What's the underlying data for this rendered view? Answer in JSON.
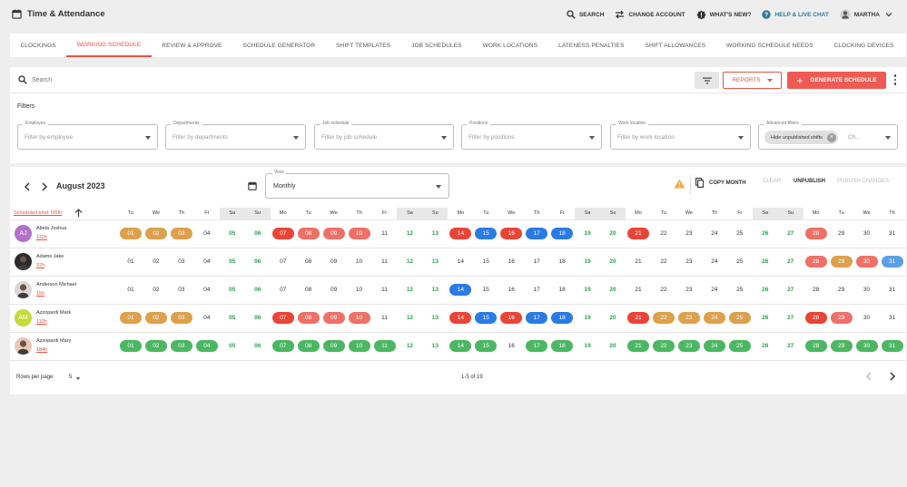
{
  "app": {
    "title": "Time & Attendance"
  },
  "top_actions": {
    "search": "SEARCH",
    "change_account": "CHANGE ACCOUNT",
    "whats_new": "WHAT'S NEW?",
    "help": "HELP & LIVE CHAT",
    "user": "MARTHA"
  },
  "tabs": [
    {
      "label": "CLOCKINGS",
      "active": false
    },
    {
      "label": "WORKING SCHEDULE",
      "active": true
    },
    {
      "label": "REVIEW & APPROVE",
      "active": false
    },
    {
      "label": "SCHEDULE GENERATOR",
      "active": false
    },
    {
      "label": "SHIFT TEMPLATES",
      "active": false
    },
    {
      "label": "JOB SCHEDULES",
      "active": false
    },
    {
      "label": "WORK LOCATIONS",
      "active": false
    },
    {
      "label": "LATENESS PENALTIES",
      "active": false
    },
    {
      "label": "SHIFT ALLOWANCES",
      "active": false
    },
    {
      "label": "WORKING SCHEDULE NEEDS",
      "active": false
    },
    {
      "label": "CLOCKING DEVICES",
      "active": false
    }
  ],
  "toolbar": {
    "search_placeholder": "Search",
    "reports_label": "REPORTS",
    "generate_label": "GENERATE SCHEDULE"
  },
  "filters": {
    "title": "Filters",
    "items": [
      {
        "label": "Employee",
        "placeholder": "Filter by employee"
      },
      {
        "label": "Departments",
        "placeholder": "Filter by departments"
      },
      {
        "label": "Job schedule",
        "placeholder": "Filter by job schedule"
      },
      {
        "label": "Positions",
        "placeholder": "Filter by positions"
      },
      {
        "label": "Work location",
        "placeholder": "Filter by work location"
      }
    ],
    "advanced": {
      "label": "Advanced filters",
      "chip": "Hide unpublished shifts",
      "placeholder": "Ch..."
    }
  },
  "schedule": {
    "month": "August 2023",
    "view_label": "View",
    "view_value": "Monthly",
    "copy_month": "COPY MONTH",
    "clear": "CLEAR",
    "unpublish": "UNPUBLISH",
    "publish": "PUBLISH CHANGES",
    "scheduled_total": "Scheduled total: 500h",
    "days": [
      "Tu",
      "We",
      "Th",
      "Fr",
      "Sa",
      "Su",
      "Mo",
      "Tu",
      "We",
      "Th",
      "Fr",
      "Sa",
      "Su",
      "Mo",
      "Tu",
      "We",
      "Th",
      "Fr",
      "Sa",
      "Su",
      "Mo",
      "Tu",
      "We",
      "Th",
      "Fr",
      "Sa",
      "Su",
      "Mo",
      "Tu",
      "We",
      "Th"
    ],
    "weekend_header_shading": [
      false,
      false,
      false,
      false,
      true,
      true,
      false,
      false,
      false,
      false,
      false,
      true,
      true,
      false,
      false,
      false,
      false,
      false,
      true,
      true,
      false,
      false,
      false,
      false,
      false,
      true,
      true,
      false,
      false,
      false,
      false
    ],
    "colors": {
      "o": "#dda04b",
      "r": "#ea4437",
      "s": "#ef7066",
      "b": "#2a7be4",
      "l": "#5aa0e6",
      "g": "#4cb763"
    },
    "employees": [
      {
        "name": "Abela Joshua",
        "hours": "112h",
        "avatar": "AJ",
        "avatar_bg": "#b36fc9",
        "days": [
          "o",
          "o",
          "o",
          "",
          "",
          "",
          "r",
          "s",
          "s",
          "s",
          "",
          "",
          "",
          "r",
          "b",
          "r",
          "b",
          "b",
          "",
          "",
          "r",
          "",
          "",
          "",
          "",
          "",
          "",
          "s",
          "",
          "",
          ""
        ]
      },
      {
        "name": "Adams Jake",
        "hours": "37h",
        "avatar": "",
        "avatar_bg": "#2b2b2b",
        "days": [
          "",
          "",
          "",
          "",
          "",
          "",
          "",
          "",
          "",
          "",
          "",
          "",
          "",
          "",
          "",
          "",
          "",
          "",
          "",
          "",
          "",
          "",
          "",
          "",
          "",
          "",
          "",
          "s",
          "o",
          "s",
          "l"
        ]
      },
      {
        "name": "Anderson Michael",
        "hours": "15h",
        "avatar": "",
        "avatar_bg": "#d9d9d9",
        "days": [
          "",
          "",
          "",
          "",
          "",
          "",
          "",
          "",
          "",
          "",
          "",
          "",
          "",
          "b",
          "",
          "",
          "",
          "",
          "",
          "",
          "",
          "",
          "",
          "",
          "",
          "",
          "",
          "",
          "",
          "",
          ""
        ]
      },
      {
        "name": "Azzopardi Mark",
        "hours": "112h",
        "avatar": "AM",
        "avatar_bg": "#c5da3b",
        "days": [
          "o",
          "o",
          "o",
          "",
          "",
          "",
          "r",
          "s",
          "s",
          "s",
          "",
          "",
          "",
          "r",
          "b",
          "r",
          "b",
          "b",
          "",
          "",
          "r",
          "o",
          "o",
          "o",
          "o",
          "",
          "",
          "r",
          "s",
          "",
          ""
        ]
      },
      {
        "name": "Azzopardi Mary",
        "hours": "184h",
        "avatar": "",
        "avatar_bg": "#e9c9b6",
        "days": [
          "g",
          "g",
          "g",
          "g",
          "",
          "",
          "g",
          "g",
          "g",
          "g",
          "g",
          "",
          "",
          "g",
          "g",
          "",
          "g",
          "g",
          "",
          "",
          "g",
          "g",
          "g",
          "g",
          "g",
          "",
          "",
          "g",
          "g",
          "g",
          "g"
        ]
      }
    ]
  },
  "footer": {
    "rows_per_page_label": "Rows per page:",
    "rows_per_page": "5",
    "range": "1-5 of 19"
  }
}
